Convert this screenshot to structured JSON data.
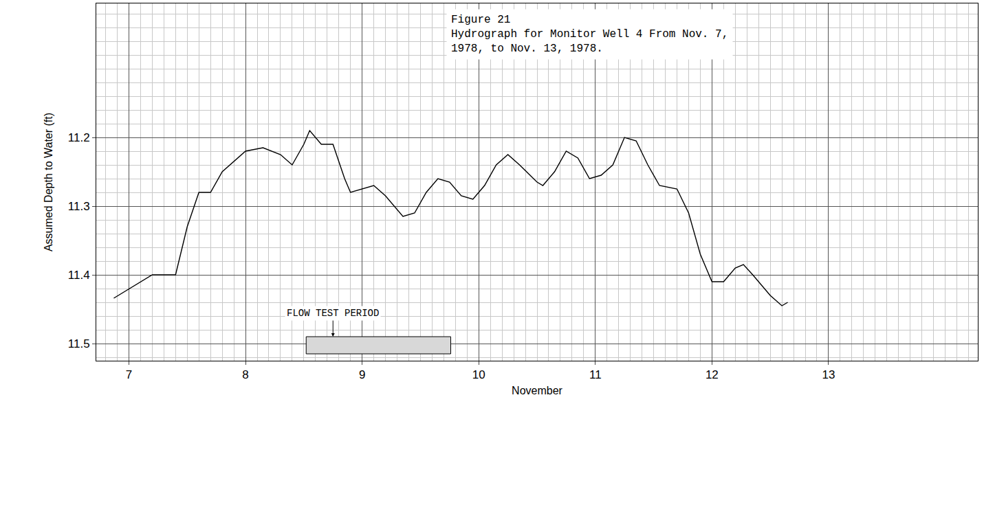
{
  "chart_data": {
    "type": "line",
    "title": "Figure 21",
    "subtitle": "Hydrograph for Monitor Well 4 From Nov. 7, 1978, to Nov. 13, 1978.",
    "x_label": "November",
    "y_label": "Assumed Depth to Water (ft)",
    "x": [
      6.87,
      7.2,
      7.4,
      7.5,
      7.6,
      7.7,
      7.8,
      8.0,
      8.15,
      8.3,
      8.4,
      8.5,
      8.55,
      8.65,
      8.75,
      8.85,
      8.9,
      9.0,
      9.1,
      9.2,
      9.35,
      9.45,
      9.55,
      9.65,
      9.75,
      9.85,
      9.95,
      10.05,
      10.15,
      10.25,
      10.35,
      10.5,
      10.55,
      10.65,
      10.75,
      10.85,
      10.95,
      11.05,
      11.15,
      11.25,
      11.35,
      11.45,
      11.55,
      11.7,
      11.8,
      11.9,
      12.0,
      12.1,
      12.2,
      12.27,
      12.35,
      12.5,
      12.6,
      12.65
    ],
    "values": [
      11.434,
      11.4,
      11.4,
      11.33,
      11.28,
      11.28,
      11.25,
      11.22,
      11.215,
      11.225,
      11.24,
      11.21,
      11.19,
      11.21,
      11.21,
      11.26,
      11.28,
      11.275,
      11.27,
      11.285,
      11.315,
      11.31,
      11.28,
      11.26,
      11.265,
      11.285,
      11.29,
      11.27,
      11.24,
      11.225,
      11.24,
      11.265,
      11.27,
      11.25,
      11.22,
      11.23,
      11.26,
      11.255,
      11.24,
      11.2,
      11.205,
      11.24,
      11.27,
      11.275,
      11.31,
      11.37,
      11.41,
      11.41,
      11.39,
      11.385,
      11.4,
      11.43,
      11.445,
      11.44
    ],
    "color": "#000000",
    "xlim": [
      6.72,
      14.28
    ],
    "xticks": [
      7,
      8,
      9,
      10,
      11,
      12,
      13
    ],
    "ylim": [
      11.525,
      11.005
    ],
    "yticks": [
      11.2,
      11.3,
      11.4,
      11.5
    ],
    "grid": true,
    "annotations": [
      {
        "text": "FLOW TEST PERIOD",
        "x": 8.75,
        "y": 11.49
      }
    ],
    "flow_test_period": {
      "start": 8.52,
      "end": 9.76,
      "top": 11.49,
      "bottom": 11.515
    }
  }
}
